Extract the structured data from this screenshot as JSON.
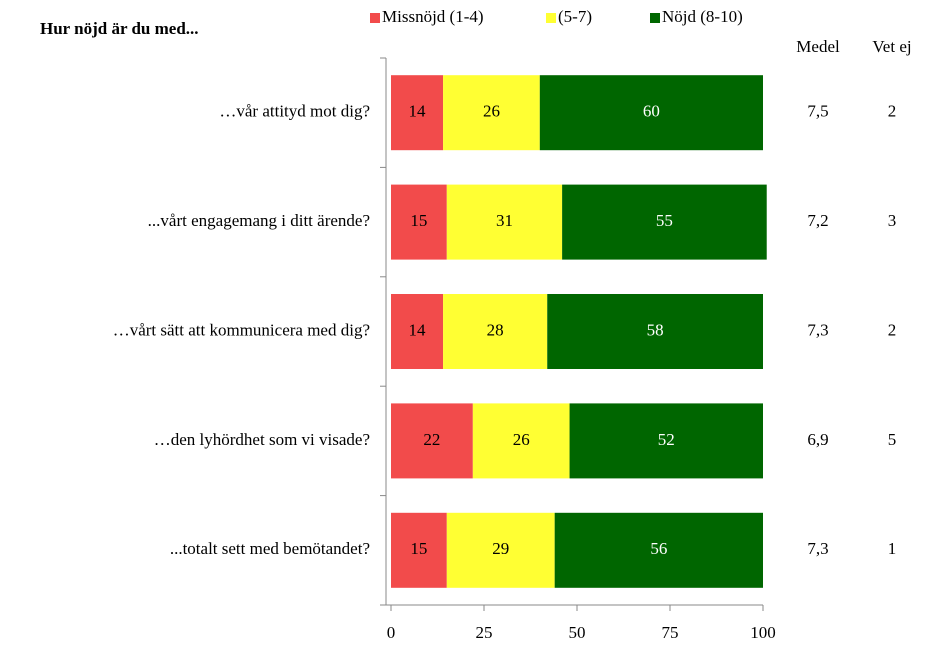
{
  "chart_data": {
    "type": "bar",
    "orientation": "horizontal",
    "stacked": true,
    "title": "Hur nöjd är du med...",
    "categories": [
      "…vår attityd mot dig?",
      "...vårt engagemang i ditt ärende?",
      "…vårt sätt att kommunicera  med dig?",
      "…den lyhördhet som vi visade?",
      "...totalt sett med bemötandet?"
    ],
    "series": [
      {
        "name": "Missnöjd (1-4)",
        "color": "#f24b4b",
        "label_color": "#000000",
        "values": [
          14,
          15,
          14,
          22,
          15
        ]
      },
      {
        "name": "(5-7)",
        "color": "#ffff33",
        "label_color": "#000000",
        "values": [
          26,
          31,
          28,
          26,
          29
        ]
      },
      {
        "name": "Nöjd (8-10)",
        "color": "#006600",
        "label_color": "#ffffff",
        "values": [
          60,
          55,
          58,
          52,
          56
        ]
      }
    ],
    "columns": [
      {
        "name": "Medel",
        "values": [
          7.5,
          7.2,
          7.3,
          6.9,
          7.3
        ],
        "value_labels": [
          "7,5",
          "7,2",
          "7,3",
          "6,9",
          "7,3"
        ]
      },
      {
        "name": "Vet ej",
        "values": [
          2,
          3,
          2,
          5,
          1
        ]
      }
    ],
    "xlim": [
      0,
      100
    ],
    "xticks": [
      0,
      25,
      50,
      75,
      100
    ],
    "grid": false,
    "legend": "top"
  }
}
